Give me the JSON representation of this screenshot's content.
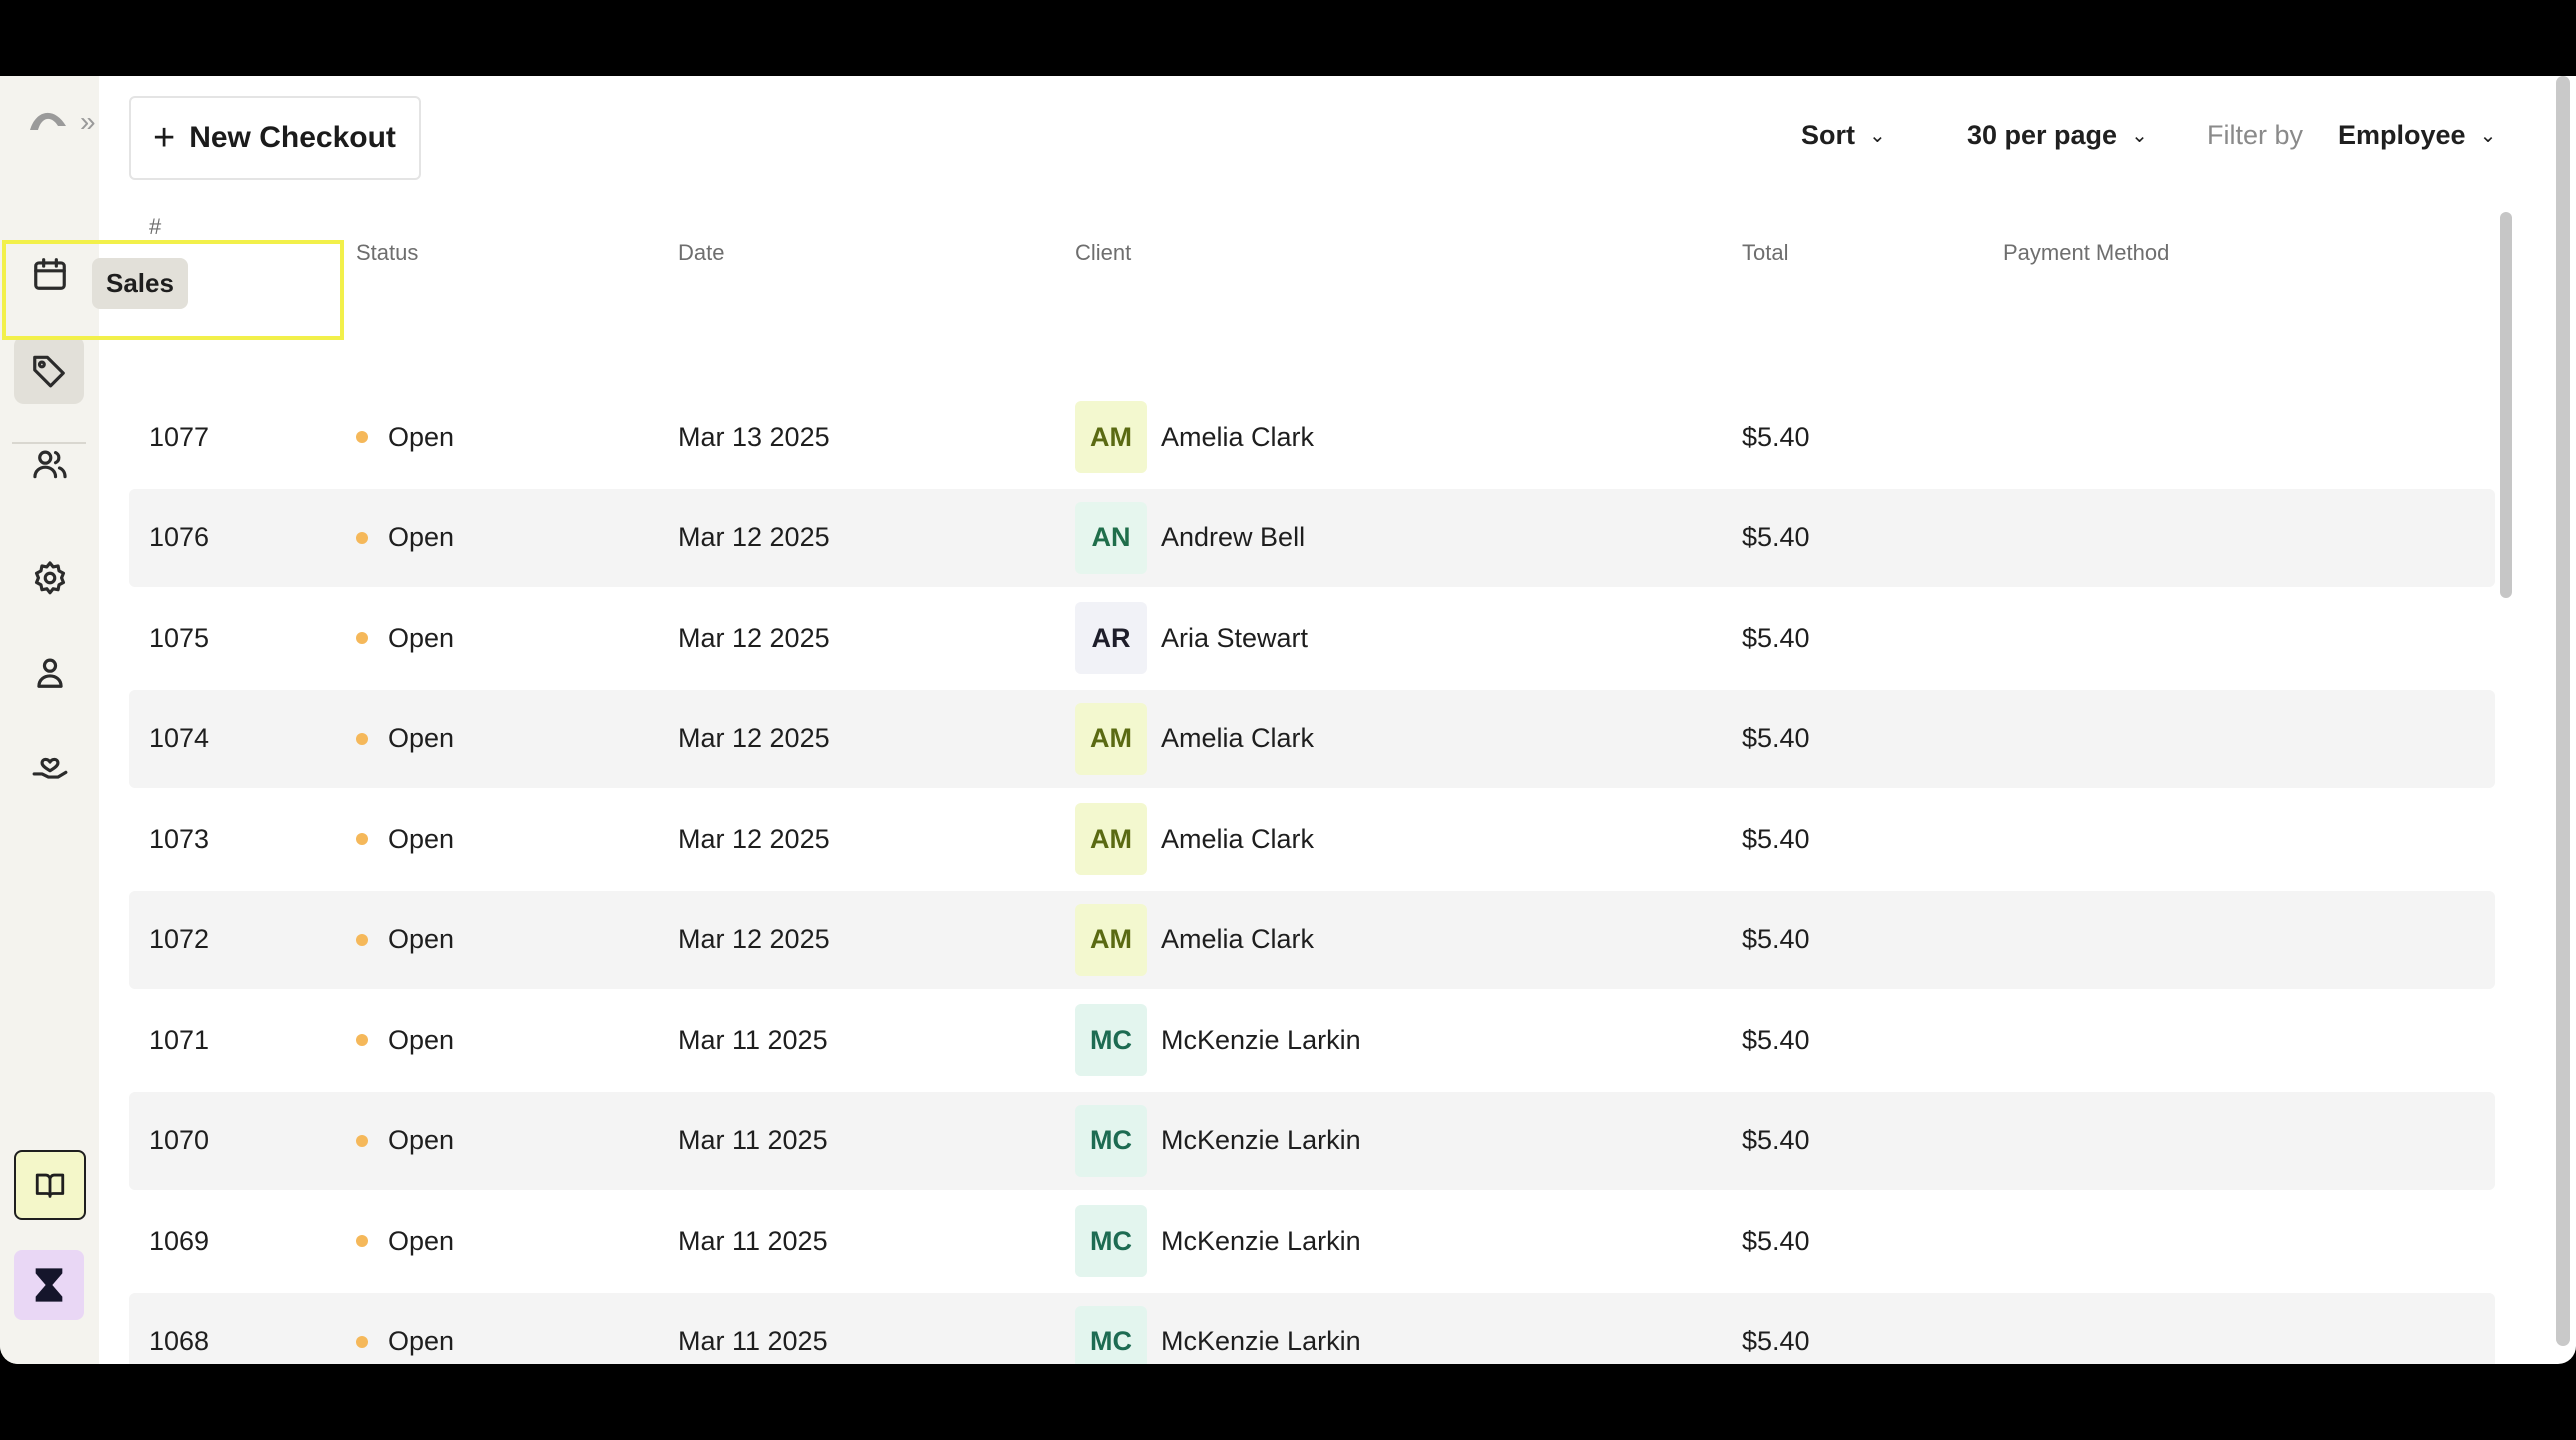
{
  "sidebar": {
    "tooltip": "Sales",
    "icons": [
      "logo-icon",
      "calendar-icon",
      "tag-icon",
      "users-icon",
      "settings-icon",
      "person-icon",
      "hand-heart-icon",
      "book-icon",
      "hourglass-icon"
    ]
  },
  "toolbar": {
    "new_checkout_label": "New Checkout",
    "sort_label": "Sort",
    "per_page_label": "30 per page",
    "filter_by_label": "Filter by",
    "filter_value": "Employee"
  },
  "table": {
    "headers": {
      "number": "#",
      "status": "Status",
      "date": "Date",
      "client": "Client",
      "total": "Total",
      "payment_method": "Payment Method"
    },
    "rows": [
      {
        "number": "1077",
        "status": "Open",
        "date": "Mar 13 2025",
        "initials": "AM",
        "client": "Amelia Clark",
        "total": "$5.40"
      },
      {
        "number": "1076",
        "status": "Open",
        "date": "Mar 12 2025",
        "initials": "AN",
        "client": "Andrew Bell",
        "total": "$5.40"
      },
      {
        "number": "1075",
        "status": "Open",
        "date": "Mar 12 2025",
        "initials": "AR",
        "client": "Aria Stewart",
        "total": "$5.40"
      },
      {
        "number": "1074",
        "status": "Open",
        "date": "Mar 12 2025",
        "initials": "AM",
        "client": "Amelia Clark",
        "total": "$5.40"
      },
      {
        "number": "1073",
        "status": "Open",
        "date": "Mar 12 2025",
        "initials": "AM",
        "client": "Amelia Clark",
        "total": "$5.40"
      },
      {
        "number": "1072",
        "status": "Open",
        "date": "Mar 12 2025",
        "initials": "AM",
        "client": "Amelia Clark",
        "total": "$5.40"
      },
      {
        "number": "1071",
        "status": "Open",
        "date": "Mar 11 2025",
        "initials": "MC",
        "client": "McKenzie Larkin",
        "total": "$5.40"
      },
      {
        "number": "1070",
        "status": "Open",
        "date": "Mar 11 2025",
        "initials": "MC",
        "client": "McKenzie Larkin",
        "total": "$5.40"
      },
      {
        "number": "1069",
        "status": "Open",
        "date": "Mar 11 2025",
        "initials": "MC",
        "client": "McKenzie Larkin",
        "total": "$5.40"
      },
      {
        "number": "1068",
        "status": "Open",
        "date": "Mar 11 2025",
        "initials": "MC",
        "client": "McKenzie Larkin",
        "total": "$5.40"
      }
    ]
  },
  "colors": {
    "status_open_dot": "#f5b85a",
    "avatar_am_bg": "#f3f8cf",
    "avatar_am_fg": "#5a6a12",
    "avatar_an_bg": "#e6f6ee",
    "avatar_an_fg": "#1f6e4a",
    "avatar_ar_bg": "#f1f2f7",
    "avatar_ar_fg": "#1e1e2a",
    "avatar_mc_bg": "#e3f5ee",
    "avatar_mc_fg": "#1d6b52",
    "highlight": "#f2f04a"
  }
}
